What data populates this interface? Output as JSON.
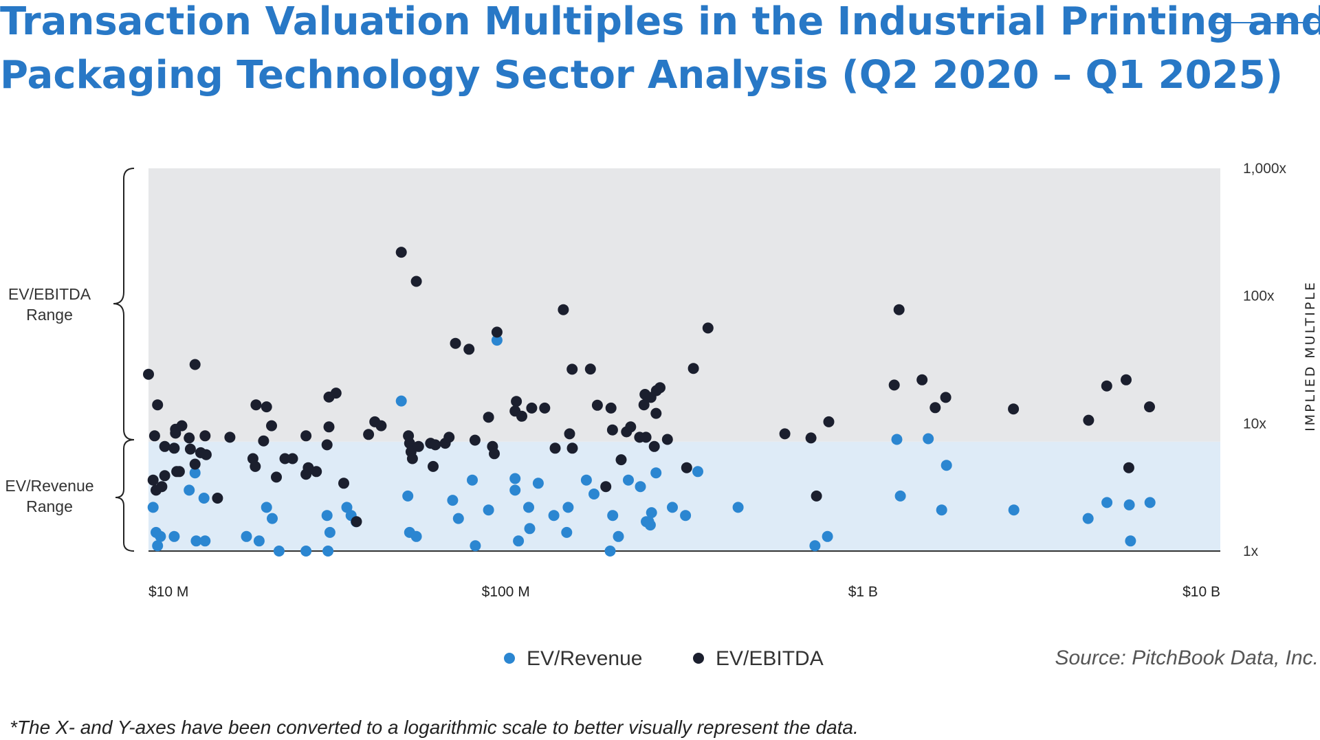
{
  "title_line1": "Transaction Valuation Multiples in the Industrial Printing and",
  "title_line2": "Packaging Technology Sector Analysis (Q2 2020 – Q1 2025)",
  "range_labels": {
    "ebitda_line1": "EV/EBITDA",
    "ebitda_line2": "Range",
    "revenue_line1": "EV/Revenue",
    "revenue_line2": "Range"
  },
  "source": "Source: PitchBook Data, Inc.",
  "footnote": "*The X- and Y-axes have been converted to a logarithmic scale to better visually represent the data.",
  "colors": {
    "title": "#2878c6",
    "revenue_dot": "#2b86d1",
    "ebitda_dot": "#1b1f2e",
    "ebitda_band": "#e6e7e9",
    "revenue_band": "#deebf7"
  },
  "chart_data": {
    "type": "scatter",
    "title": "Transaction Valuation Multiples in the Industrial Printing and Packaging Technology Sector Analysis (Q2 2020 – Q1 2025)",
    "x_scale": "log",
    "y_scale": "log",
    "xlim": [
      10,
      10000
    ],
    "ylim": [
      1,
      1000
    ],
    "x_unit": "USD millions",
    "x_ticks": [
      {
        "value": 10,
        "label": "$10 M"
      },
      {
        "value": 100,
        "label": "$100 M"
      },
      {
        "value": 1000,
        "label": "$1 B"
      },
      {
        "value": 10000,
        "label": "$10 B"
      }
    ],
    "y_ticks": [
      {
        "value": 1,
        "label": "1x"
      },
      {
        "value": 10,
        "label": "10x"
      },
      {
        "value": 100,
        "label": "100x"
      },
      {
        "value": 1000,
        "label": "1,000x"
      }
    ],
    "ylabel": "IMPLIED MULTIPLE",
    "ylabel_position": "right",
    "legend_position": "bottom-center",
    "grid": false,
    "bands": [
      {
        "name": "EV/EBITDA Range",
        "y_from": 7.2,
        "y_to": 1000
      },
      {
        "name": "EV/Revenue Range",
        "y_from": 1,
        "y_to": 7.2
      }
    ],
    "series": [
      {
        "name": "EV/Revenue",
        "color": "#2b86d1",
        "points": [
          [
            10.3,
            2.2
          ],
          [
            10.5,
            1.4
          ],
          [
            10.6,
            1.1
          ],
          [
            10.8,
            1.3
          ],
          [
            11.8,
            1.3
          ],
          [
            13.0,
            3.0
          ],
          [
            13.5,
            4.1
          ],
          [
            13.6,
            1.2
          ],
          [
            14.3,
            2.6
          ],
          [
            14.4,
            1.2
          ],
          [
            18.8,
            1.3
          ],
          [
            20.4,
            1.2
          ],
          [
            21.4,
            2.2
          ],
          [
            22.2,
            1.8
          ],
          [
            23.2,
            1.0
          ],
          [
            27.6,
            1.0
          ],
          [
            31.6,
            1.9
          ],
          [
            32.2,
            1.4
          ],
          [
            31.8,
            1.0
          ],
          [
            35.9,
            2.2
          ],
          [
            36.9,
            1.9
          ],
          [
            38.1,
            1.7
          ],
          [
            51.0,
            15.0
          ],
          [
            53.2,
            2.7
          ],
          [
            53.8,
            1.4
          ],
          [
            56.2,
            1.3
          ],
          [
            71.0,
            2.5
          ],
          [
            73.7,
            1.8
          ],
          [
            80.6,
            3.6
          ],
          [
            82.2,
            1.1
          ],
          [
            89.5,
            2.1
          ],
          [
            94.5,
            45.0
          ],
          [
            106.2,
            3.0
          ],
          [
            106.2,
            3.7
          ],
          [
            108.5,
            1.2
          ],
          [
            115.9,
            2.2
          ],
          [
            116.7,
            1.5
          ],
          [
            123.3,
            3.4
          ],
          [
            136.3,
            1.9
          ],
          [
            148.1,
            1.4
          ],
          [
            149.5,
            2.2
          ],
          [
            168.1,
            3.6
          ],
          [
            176.6,
            2.8
          ],
          [
            196.0,
            1.0
          ],
          [
            199.2,
            1.9
          ],
          [
            206.7,
            1.3
          ],
          [
            220.4,
            3.6
          ],
          [
            238.1,
            3.2
          ],
          [
            247.3,
            1.7
          ],
          [
            251.1,
            1.7
          ],
          [
            253.8,
            1.6
          ],
          [
            255.9,
            2.0
          ],
          [
            263.3,
            4.1
          ],
          [
            292.6,
            2.2
          ],
          [
            318.5,
            1.9
          ],
          [
            344.8,
            4.2
          ],
          [
            446.9,
            2.2
          ],
          [
            733.6,
            1.1
          ],
          [
            795.0,
            1.3
          ],
          [
            1243.3,
            7.5
          ],
          [
            1271.6,
            2.7
          ],
          [
            1522.8,
            7.6
          ],
          [
            1659.9,
            2.1
          ],
          [
            1712.2,
            4.7
          ],
          [
            2643.5,
            2.1
          ],
          [
            4265.6,
            1.8
          ],
          [
            4815.4,
            2.4
          ],
          [
            5562.9,
            2.3
          ],
          [
            5605.2,
            1.2
          ],
          [
            6355.1,
            2.4
          ]
        ]
      },
      {
        "name": "EV/EBITDA",
        "color": "#1b1f2e",
        "points": [
          [
            10.0,
            24.3
          ],
          [
            10.3,
            3.6
          ],
          [
            10.5,
            3.0
          ],
          [
            10.4,
            8.0
          ],
          [
            10.6,
            14.0
          ],
          [
            10.9,
            3.2
          ],
          [
            11.1,
            6.6
          ],
          [
            11.1,
            3.9
          ],
          [
            11.8,
            6.4
          ],
          [
            11.9,
            8.4
          ],
          [
            11.9,
            9.0
          ],
          [
            12.0,
            4.2
          ],
          [
            12.2,
            4.2
          ],
          [
            12.4,
            9.6
          ],
          [
            13.0,
            7.7
          ],
          [
            13.1,
            6.3
          ],
          [
            13.5,
            4.8
          ],
          [
            13.5,
            29.0
          ],
          [
            14.0,
            5.9
          ],
          [
            14.4,
            8.0
          ],
          [
            14.5,
            5.7
          ],
          [
            15.6,
            2.6
          ],
          [
            16.9,
            7.8
          ],
          [
            19.6,
            5.3
          ],
          [
            19.9,
            4.6
          ],
          [
            20.0,
            14.0
          ],
          [
            21.0,
            7.3
          ],
          [
            21.4,
            13.5
          ],
          [
            22.1,
            9.6
          ],
          [
            22.8,
            3.8
          ],
          [
            24.1,
            5.3
          ],
          [
            25.3,
            5.3
          ],
          [
            27.6,
            8.0
          ],
          [
            27.6,
            4.0
          ],
          [
            28.0,
            4.5
          ],
          [
            29.5,
            4.2
          ],
          [
            31.6,
            6.8
          ],
          [
            32.0,
            9.4
          ],
          [
            32.0,
            16.1
          ],
          [
            33.5,
            17.3
          ],
          [
            35.2,
            3.4
          ],
          [
            38.2,
            1.7
          ],
          [
            41.3,
            8.2
          ],
          [
            43.0,
            10.3
          ],
          [
            44.8,
            9.6
          ],
          [
            51.0,
            220.0
          ],
          [
            53.4,
            8.0
          ],
          [
            53.8,
            7.0
          ],
          [
            54.3,
            6.0
          ],
          [
            54.8,
            5.3
          ],
          [
            56.2,
            130.0
          ],
          [
            57.0,
            6.6
          ],
          [
            61.6,
            7.0
          ],
          [
            62.6,
            4.6
          ],
          [
            63.5,
            6.8
          ],
          [
            67.7,
            7.0
          ],
          [
            69.4,
            7.8
          ],
          [
            72.3,
            42.5
          ],
          [
            78.9,
            38.2
          ],
          [
            82.0,
            7.4
          ],
          [
            89.5,
            11.2
          ],
          [
            91.8,
            6.6
          ],
          [
            92.9,
            5.8
          ],
          [
            94.5,
            52.0
          ],
          [
            107.1,
            14.9
          ],
          [
            106.2,
            12.5
          ],
          [
            110.9,
            11.4
          ],
          [
            118.2,
            13.2
          ],
          [
            128.5,
            13.2
          ],
          [
            137.5,
            6.4
          ],
          [
            144.9,
            78.0
          ],
          [
            150.9,
            8.3
          ],
          [
            153.6,
            6.4
          ],
          [
            153.4,
            26.6
          ],
          [
            172.6,
            26.7
          ],
          [
            180.5,
            13.9
          ],
          [
            190.6,
            3.2
          ],
          [
            197.0,
            13.2
          ],
          [
            198.9,
            8.9
          ],
          [
            210.4,
            5.2
          ],
          [
            217.8,
            8.6
          ],
          [
            223.6,
            9.4
          ],
          [
            237.0,
            7.8
          ],
          [
            243.7,
            14.0
          ],
          [
            245.3,
            16.9
          ],
          [
            246.8,
            7.8
          ],
          [
            254.9,
            16.0
          ],
          [
            260.5,
            6.6
          ],
          [
            263.5,
            12.0
          ],
          [
            264.0,
            18.1
          ],
          [
            270.2,
            19.1
          ],
          [
            283.4,
            7.5
          ],
          [
            320.9,
            4.5
          ],
          [
            335.2,
            27.0
          ],
          [
            368.1,
            56.0
          ],
          [
            604.2,
            8.3
          ],
          [
            714.9,
            7.7
          ],
          [
            801.7,
            10.3
          ],
          [
            1222.9,
            20.0
          ],
          [
            1261.1,
            78.0
          ],
          [
            1462.9,
            22.0
          ],
          [
            1591.9,
            13.3
          ],
          [
            1703.8,
            16.0
          ],
          [
            2636.4,
            13.0
          ],
          [
            4278.2,
            10.6
          ],
          [
            4810.1,
            19.7
          ],
          [
            5448.9,
            22.0
          ],
          [
            5545.7,
            4.5
          ],
          [
            6335.6,
            13.5
          ],
          [
            740.6,
            2.7
          ]
        ]
      }
    ]
  }
}
